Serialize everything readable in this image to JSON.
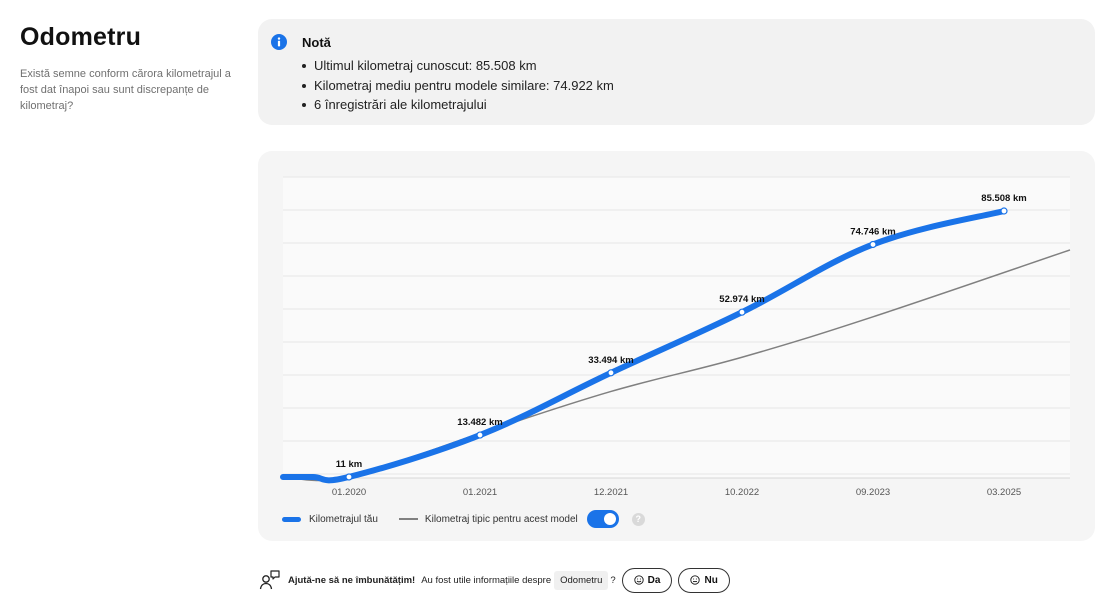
{
  "page": {
    "title": "Odometru",
    "subtitle": "Există semne conform cărora kilometrajul a fost dat înapoi sau sunt discrepanțe de kilometraj?"
  },
  "note": {
    "icon": "info-icon",
    "title": "Notă",
    "items": [
      "Ultimul kilometraj cunoscut: 85.508 km",
      "Kilometraj mediu pentru modele similare: 74.922 km",
      "6 înregistrări ale kilometrajului"
    ]
  },
  "chart_data": {
    "type": "line",
    "x_ticks": [
      "01.2020",
      "01.2021",
      "12.2021",
      "10.2022",
      "09.2023",
      "03.2025"
    ],
    "series": [
      {
        "name": "Kilometrajul tău",
        "color": "#1a73e8",
        "points": [
          {
            "x": "01.2020",
            "y": 11,
            "label": "11 km"
          },
          {
            "x": "01.2021",
            "y": 13482,
            "label": "13.482 km"
          },
          {
            "x": "12.2021",
            "y": 33494,
            "label": "33.494 km"
          },
          {
            "x": "10.2022",
            "y": 52974,
            "label": "52.974 km"
          },
          {
            "x": "09.2023",
            "y": 74746,
            "label": "74.746 km"
          },
          {
            "x": "03.2025",
            "y": 85508,
            "label": "85.508 km"
          }
        ]
      },
      {
        "name": "Kilometraj tipic pentru acest model",
        "color": "#808080",
        "points": [
          {
            "x": "01.2020",
            "y": 0
          },
          {
            "x": "01.2021",
            "y": 14000
          },
          {
            "x": "12.2021",
            "y": 27500
          },
          {
            "x": "10.2022",
            "y": 38500
          },
          {
            "x": "09.2023",
            "y": 51500
          },
          {
            "x": "03.2025",
            "y": 73000
          }
        ]
      }
    ],
    "ylim": [
      0,
      92000
    ],
    "grid": true,
    "legend_position": "bottom-left"
  },
  "legend": {
    "series_1": "Kilometrajul tău",
    "series_2": "Kilometraj tipic pentru acest model",
    "toggle_on": true,
    "help_symbol": "?"
  },
  "feedback": {
    "icon": "person-chat-icon",
    "heading": "Ajută-ne să ne îmbunătățim!",
    "question": "Au fost utile informațiile despre",
    "topic": "Odometru",
    "question_mark": "?",
    "yes_label": "Da",
    "no_label": "Nu"
  }
}
